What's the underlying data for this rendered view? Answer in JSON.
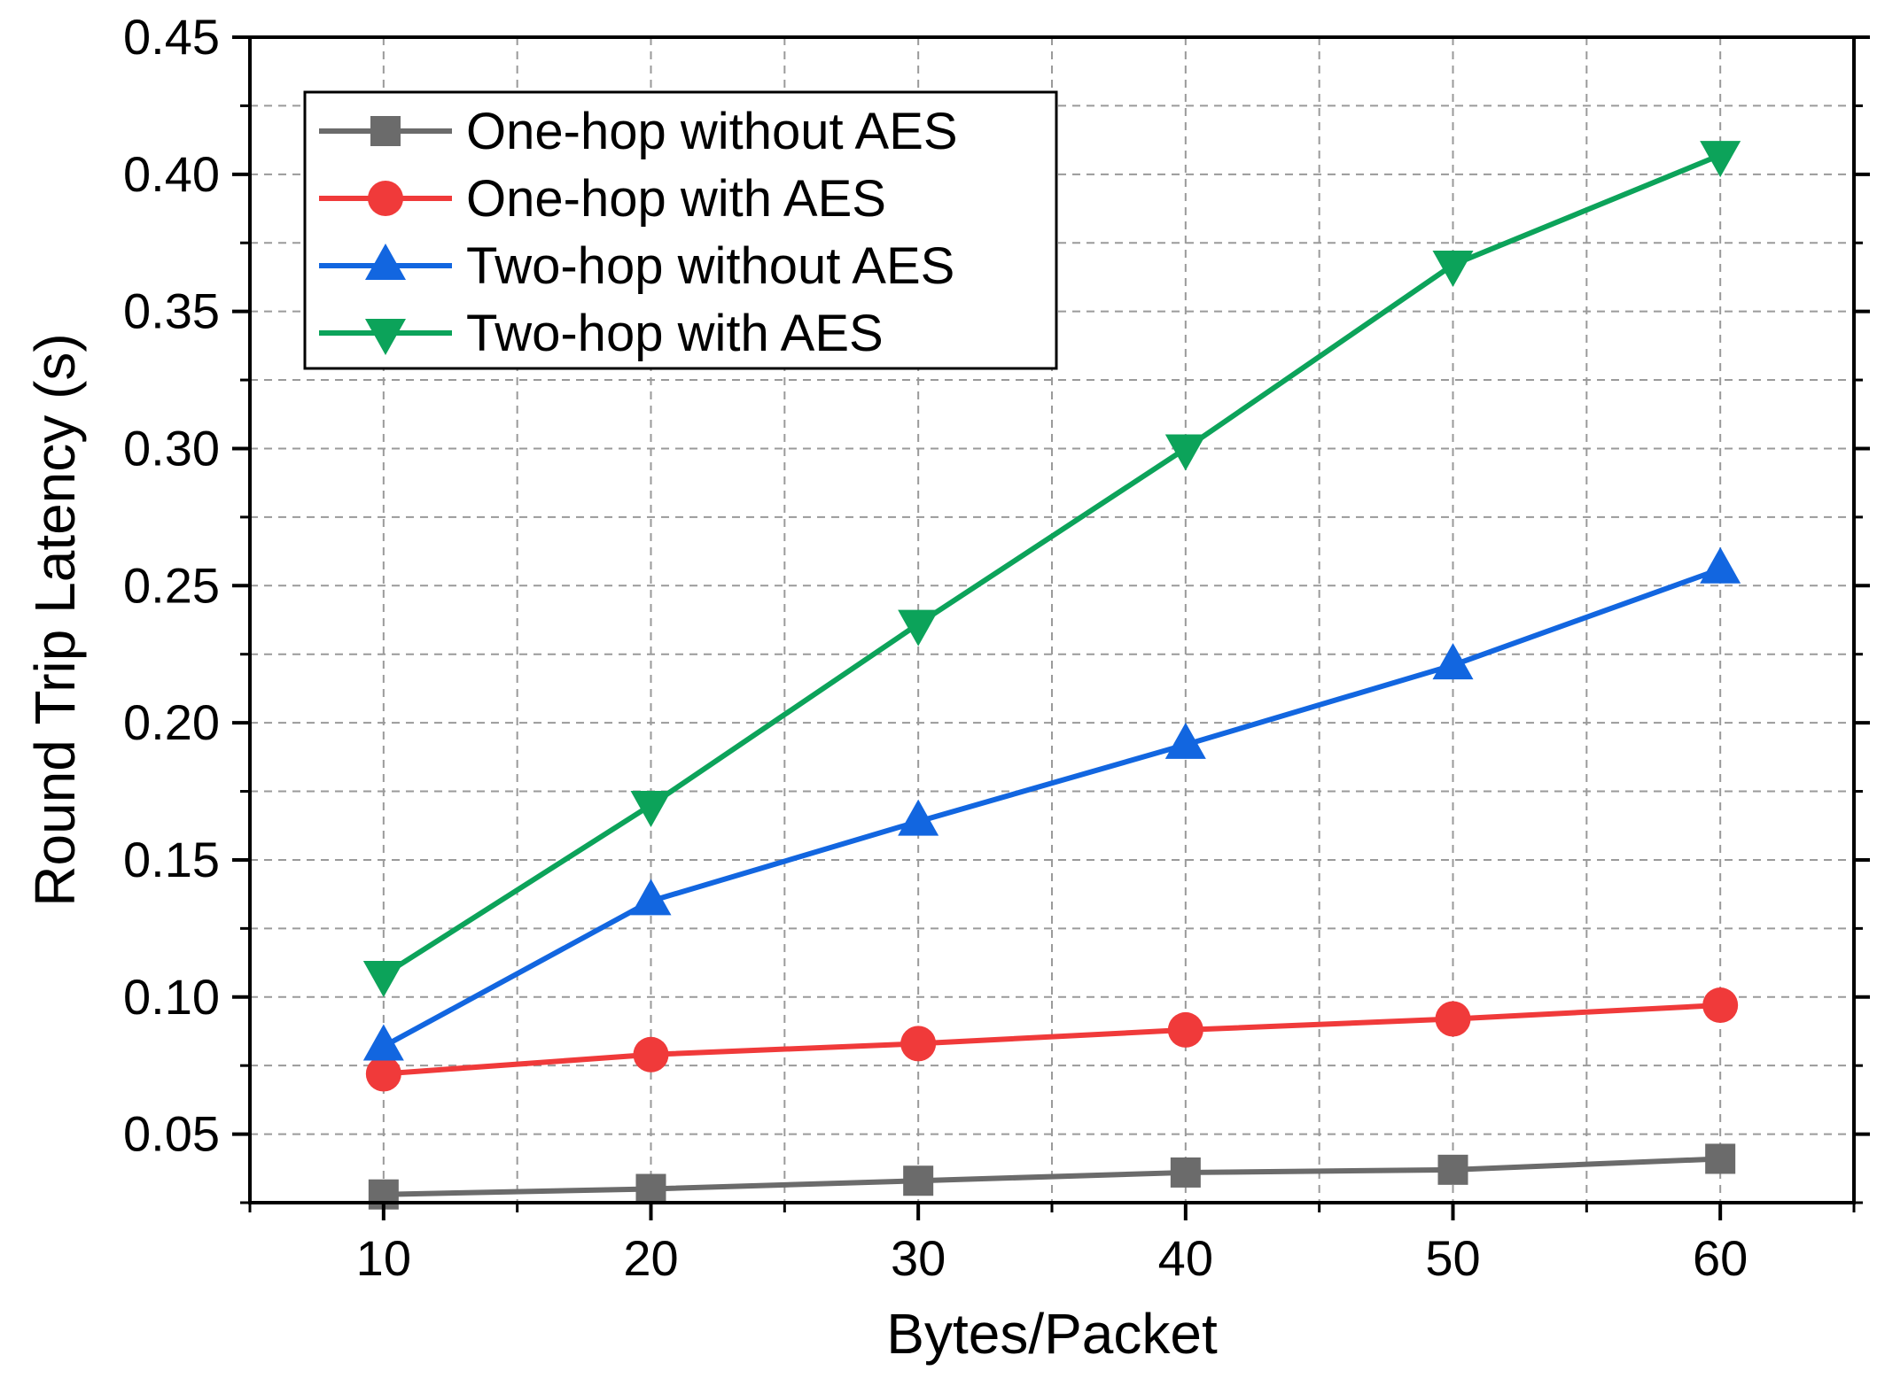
{
  "chart_data": {
    "type": "line",
    "title": "",
    "xlabel": "Bytes/Packet",
    "ylabel": "Round Trip Latency (s)",
    "x": [
      10,
      20,
      30,
      40,
      50,
      60
    ],
    "xlim": [
      5,
      65
    ],
    "ylim": [
      0.025,
      0.45
    ],
    "x_ticks": [
      "10",
      "20",
      "30",
      "40",
      "50",
      "60"
    ],
    "y_ticks": [
      "0.05",
      "0.10",
      "0.15",
      "0.20",
      "0.25",
      "0.30",
      "0.35",
      "0.40",
      "0.45"
    ],
    "grid": true,
    "legend_position": "top-left",
    "series": [
      {
        "name": "One-hop without AES",
        "marker": "square",
        "color": "#6b6b6b",
        "values": [
          0.028,
          0.03,
          0.033,
          0.036,
          0.037,
          0.041
        ]
      },
      {
        "name": "One-hop with AES",
        "marker": "circle",
        "color": "#f03a3a",
        "values": [
          0.072,
          0.079,
          0.083,
          0.088,
          0.092,
          0.097
        ]
      },
      {
        "name": "Two-hop without AES",
        "marker": "triangle-up",
        "color": "#1266e0",
        "values": [
          0.082,
          0.135,
          0.164,
          0.192,
          0.221,
          0.256
        ]
      },
      {
        "name": "Two-hop with AES",
        "marker": "triangle-down",
        "color": "#0ca35a",
        "values": [
          0.108,
          0.17,
          0.236,
          0.3,
          0.367,
          0.407
        ]
      }
    ]
  }
}
